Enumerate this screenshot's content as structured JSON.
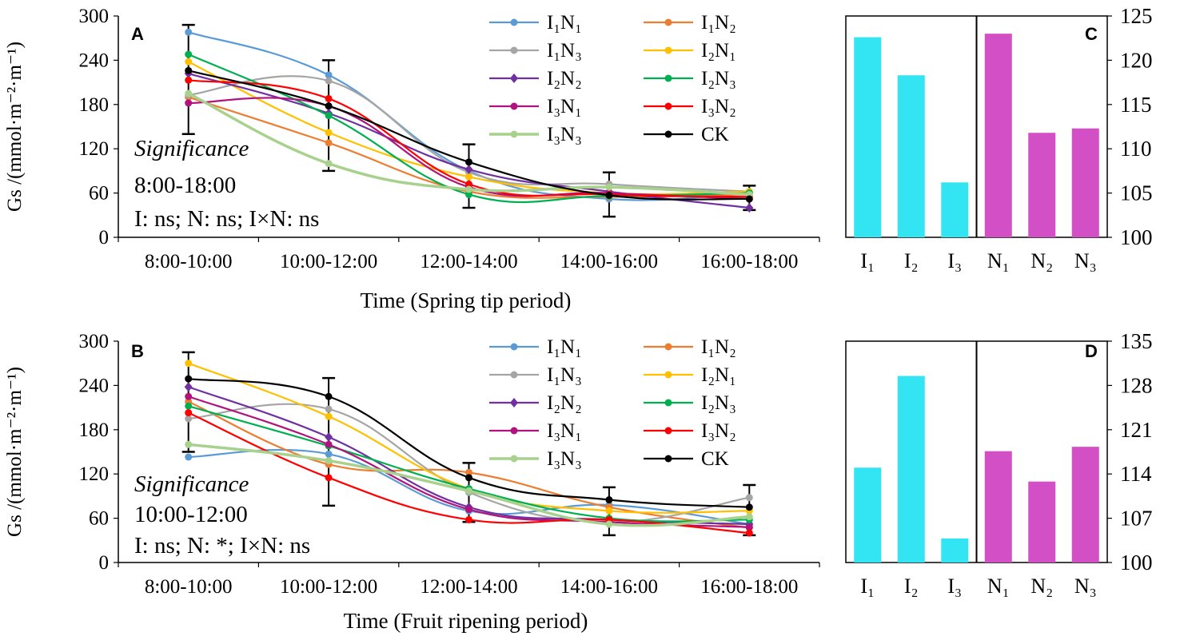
{
  "chart_data": [
    {
      "id": "A",
      "type": "line",
      "panel_label": "A",
      "xlabel": "Time (Spring tip period)",
      "ylabel": "Gs /(mmol·m⁻²·m⁻¹)",
      "categories": [
        "8:00-10:00",
        "10:00-12:00",
        "12:00-14:00",
        "14:00-16:00",
        "16:00-18:00"
      ],
      "ylim": [
        0,
        300
      ],
      "yticks": [
        0,
        60,
        120,
        180,
        240,
        300
      ],
      "annotation": {
        "title": "Significance",
        "period": "8:00-18:00",
        "stats": "I: ns; N: ns; I×N: ns"
      },
      "legend_position": "top-right",
      "series": [
        {
          "name": "I₁N₁",
          "color": "#5B9BD5",
          "marker": "circle",
          "values": [
            278,
            220,
            90,
            52,
            60
          ]
        },
        {
          "name": "I₁N₂",
          "color": "#ED7D31",
          "marker": "circle",
          "values": [
            190,
            128,
            62,
            55,
            58
          ]
        },
        {
          "name": "I₁N₃",
          "color": "#A5A5A5",
          "marker": "circle",
          "values": [
            193,
            212,
            88,
            72,
            62
          ]
        },
        {
          "name": "I₂N₁",
          "color": "#FFC000",
          "marker": "circle",
          "values": [
            238,
            142,
            82,
            60,
            62
          ]
        },
        {
          "name": "I₂N₂",
          "color": "#7030A0",
          "marker": "diamond",
          "values": [
            222,
            168,
            92,
            62,
            40
          ]
        },
        {
          "name": "I₂N₃",
          "color": "#00B050",
          "marker": "circle",
          "values": [
            248,
            165,
            58,
            56,
            60
          ]
        },
        {
          "name": "I₃N₁",
          "color": "#B0137D",
          "marker": "circle",
          "values": [
            182,
            178,
            68,
            60,
            52
          ]
        },
        {
          "name": "I₃N₂",
          "color": "#FF0000",
          "marker": "circle",
          "values": [
            213,
            188,
            72,
            58,
            55
          ]
        },
        {
          "name": "I₃N₃",
          "color": "#A9D18E",
          "marker": "circle",
          "values": [
            195,
            100,
            65,
            68,
            58
          ]
        },
        {
          "name": "CK",
          "color": "#000000",
          "marker": "circle",
          "values": [
            226,
            178,
            102,
            57,
            52
          ]
        }
      ],
      "error_bars": [
        {
          "x": "8:00-10:00",
          "low": 140,
          "high": 288
        },
        {
          "x": "10:00-12:00",
          "low": 90,
          "high": 240
        },
        {
          "x": "12:00-14:00",
          "low": 40,
          "high": 126
        },
        {
          "x": "14:00-16:00",
          "low": 28,
          "high": 88
        },
        {
          "x": "16:00-18:00",
          "low": 37,
          "high": 70
        }
      ]
    },
    {
      "id": "B",
      "type": "line",
      "panel_label": "B",
      "xlabel": "Time (Fruit ripening period)",
      "ylabel": "Gs /(mmol·m⁻²·m⁻¹)",
      "categories": [
        "8:00-10:00",
        "10:00-12:00",
        "12:00-14:00",
        "14:00-16:00",
        "16:00-18:00"
      ],
      "ylim": [
        0,
        300
      ],
      "yticks": [
        0,
        60,
        120,
        180,
        240,
        300
      ],
      "annotation": {
        "title": "Significance",
        "period": "10:00-12:00",
        "stats": "I: ns; N: *; I×N: ns"
      },
      "legend_position": "top-right",
      "series": [
        {
          "name": "I₁N₁",
          "color": "#5B9BD5",
          "marker": "circle",
          "values": [
            143,
            147,
            70,
            78,
            52
          ]
        },
        {
          "name": "I₁N₂",
          "color": "#ED7D31",
          "marker": "circle",
          "values": [
            218,
            133,
            122,
            75,
            47
          ]
        },
        {
          "name": "I₁N₃",
          "color": "#A5A5A5",
          "marker": "circle",
          "values": [
            195,
            208,
            95,
            55,
            88
          ]
        },
        {
          "name": "I₂N₁",
          "color": "#FFC000",
          "marker": "circle",
          "values": [
            270,
            198,
            100,
            70,
            70
          ]
        },
        {
          "name": "I₂N₂",
          "color": "#7030A0",
          "marker": "diamond",
          "values": [
            238,
            170,
            75,
            58,
            52
          ]
        },
        {
          "name": "I₂N₃",
          "color": "#00B050",
          "marker": "circle",
          "values": [
            212,
            158,
            100,
            60,
            58
          ]
        },
        {
          "name": "I₃N₁",
          "color": "#B0137D",
          "marker": "circle",
          "values": [
            225,
            160,
            72,
            55,
            48
          ]
        },
        {
          "name": "I₃N₂",
          "color": "#FF0000",
          "marker": "circle",
          "values": [
            203,
            115,
            58,
            58,
            40
          ]
        },
        {
          "name": "I₃N₃",
          "color": "#A9D18E",
          "marker": "circle",
          "values": [
            160,
            138,
            97,
            52,
            62
          ]
        },
        {
          "name": "CK",
          "color": "#000000",
          "marker": "circle",
          "values": [
            249,
            225,
            115,
            85,
            75
          ]
        }
      ],
      "error_bars": [
        {
          "x": "8:00-10:00",
          "low": 150,
          "high": 285
        },
        {
          "x": "10:00-12:00",
          "low": 77,
          "high": 250
        },
        {
          "x": "12:00-14:00",
          "low": 55,
          "high": 135
        },
        {
          "x": "14:00-16:00",
          "low": 37,
          "high": 102
        },
        {
          "x": "16:00-18:00",
          "low": 37,
          "high": 105
        }
      ]
    },
    {
      "id": "C",
      "type": "bar",
      "panel_label": "C",
      "categories": [
        "I₁",
        "I₂",
        "I₃",
        "N₁",
        "N₂",
        "N₃"
      ],
      "values": [
        122.6,
        118.3,
        106.2,
        123.0,
        111.8,
        112.3
      ],
      "colors": [
        "#33E4F2",
        "#33E4F2",
        "#33E4F2",
        "#D24FC6",
        "#D24FC6",
        "#D24FC6"
      ],
      "ylim": [
        100,
        125
      ],
      "yticks": [
        100,
        105,
        110,
        115,
        120,
        125
      ],
      "yaxis_side": "right",
      "divider_between": [
        "I₃",
        "N₁"
      ]
    },
    {
      "id": "D",
      "type": "bar",
      "panel_label": "D",
      "categories": [
        "I₁",
        "I₂",
        "I₃",
        "N₁",
        "N₂",
        "N₃"
      ],
      "values": [
        115.0,
        129.5,
        103.8,
        117.6,
        112.8,
        118.3
      ],
      "colors": [
        "#33E4F2",
        "#33E4F2",
        "#33E4F2",
        "#D24FC6",
        "#D24FC6",
        "#D24FC6"
      ],
      "ylim": [
        100,
        135
      ],
      "yticks": [
        100,
        107,
        114,
        121,
        128,
        135
      ],
      "yaxis_side": "right",
      "divider_between": [
        "I₃",
        "N₁"
      ]
    }
  ]
}
